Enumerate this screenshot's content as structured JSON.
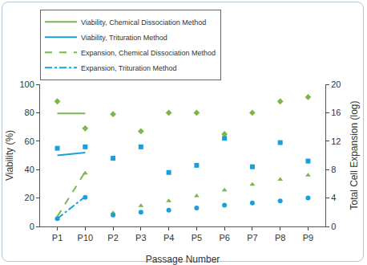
{
  "chart_data": {
    "type": "scatter",
    "x_label": "Passage Number",
    "y_label": "Viability (%)",
    "y2_label": "Total Cell Expansion (log)",
    "categories": [
      "P1",
      "P2",
      "P3",
      "P4",
      "P5",
      "P6",
      "P7",
      "P8",
      "P9",
      "P10"
    ],
    "ylim": [
      0,
      100
    ],
    "yticks": [
      0,
      20,
      40,
      60,
      80,
      100
    ],
    "y2lim": [
      0,
      20
    ],
    "y2ticks": [
      0,
      4,
      8,
      12,
      16,
      20
    ],
    "grid": false,
    "legend": "top-left",
    "series": [
      {
        "name": "Viability, Chemical Dissociation Method",
        "color": "#7ab648",
        "marker": "diamond",
        "line_style": "solid",
        "values": [
          88,
          79,
          67,
          80,
          80,
          65,
          80,
          88,
          91,
          69
        ],
        "trend": [
          79.5,
          79.5
        ]
      },
      {
        "name": "Viability, Trituration Method",
        "color": "#1b9fd8",
        "marker": "square",
        "line_style": "solid",
        "values": [
          55,
          48,
          56,
          38,
          43,
          62,
          42,
          59,
          46,
          56
        ],
        "trend": [
          50,
          52
        ]
      },
      {
        "name": "Expansion, Chemical Dissociation Method",
        "color": "#7ab648",
        "marker": "triangle-up",
        "line_style": "dash",
        "axis": "y2",
        "values": [
          1.1,
          1.9,
          2.9,
          3.6,
          4.3,
          5.1,
          5.9,
          6.6,
          7.2,
          7.5
        ],
        "trend": [
          1.4,
          7.7
        ]
      },
      {
        "name": "Expansion, Trituration Method",
        "color": "#1b9fd8",
        "marker": "circle",
        "line_style": "dashdot",
        "axis": "y2",
        "values": [
          1.1,
          1.6,
          2.0,
          2.3,
          2.6,
          3.0,
          3.3,
          3.6,
          4.0,
          4.1
        ],
        "trend": [
          1.1,
          4.2
        ]
      }
    ]
  }
}
